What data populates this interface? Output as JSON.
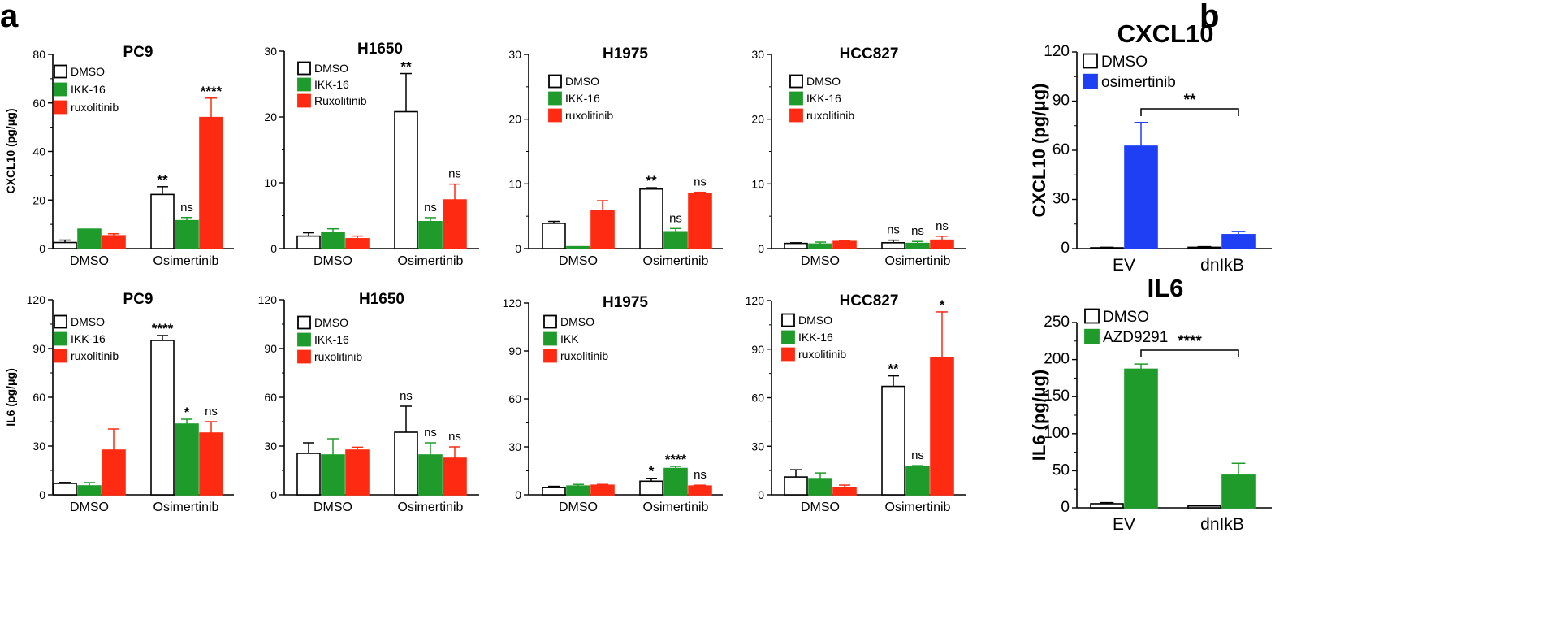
{
  "panel_labels": {
    "a": "a",
    "b": "b"
  },
  "colors": {
    "dmso": "#ffffff",
    "ikk": "#1e9b2a",
    "rux": "#ff2a12",
    "osi": "#1f3ff5",
    "azd": "#1e9b2a",
    "axis": "#000000"
  },
  "chart_data": [
    {
      "id": "pc9-cxcl10",
      "type": "bar",
      "title": "PC9",
      "ylabel": "CXCL10 (pg/μg)",
      "ylim": [
        0,
        80
      ],
      "yticks": [
        0,
        20,
        40,
        60,
        80
      ],
      "categories": [
        "DMSO",
        "Osimertinib"
      ],
      "legend": [
        "DMSO",
        "IKK-16",
        "ruxolitinib"
      ],
      "series": [
        {
          "name": "DMSO",
          "color": "dmso",
          "values": [
            2.5,
            22.3
          ],
          "err": [
            1.0,
            3.2
          ],
          "sig": [
            "",
            "**"
          ]
        },
        {
          "name": "IKK-16",
          "color": "ikk",
          "values": [
            8.0,
            11.5
          ],
          "err": [
            0,
            1.3
          ],
          "sig": [
            "",
            "ns"
          ]
        },
        {
          "name": "ruxolitinib",
          "color": "rux",
          "values": [
            5.3,
            54.0
          ],
          "err": [
            0.8,
            8.0
          ],
          "sig": [
            "",
            "****"
          ]
        }
      ]
    },
    {
      "id": "h1650-cxcl10",
      "type": "bar",
      "title": "H1650",
      "ylabel": "",
      "ylim": [
        0,
        30
      ],
      "yticks": [
        0,
        10,
        20,
        30
      ],
      "categories": [
        "DMSO",
        "Osimertinib"
      ],
      "legend": [
        "DMSO",
        "IKK-16",
        "Ruxolitinib"
      ],
      "series": [
        {
          "name": "DMSO",
          "color": "dmso",
          "values": [
            1.9,
            20.8
          ],
          "err": [
            0.5,
            5.8
          ],
          "sig": [
            "",
            "**"
          ]
        },
        {
          "name": "IKK-16",
          "color": "ikk",
          "values": [
            2.4,
            4.1
          ],
          "err": [
            0.6,
            0.6
          ],
          "sig": [
            "",
            "ns"
          ]
        },
        {
          "name": "Ruxolitinib",
          "color": "rux",
          "values": [
            1.5,
            7.4
          ],
          "err": [
            0.4,
            2.4
          ],
          "sig": [
            "",
            "ns"
          ]
        }
      ]
    },
    {
      "id": "h1975-cxcl10",
      "type": "bar",
      "title": "H1975",
      "ylabel": "",
      "ylim": [
        0,
        30
      ],
      "yticks": [
        0,
        10,
        20,
        30
      ],
      "categories": [
        "DMSO",
        "Osimertinib"
      ],
      "legend": [
        "DMSO",
        "IKK-16",
        "ruxolitinib"
      ],
      "series": [
        {
          "name": "DMSO",
          "color": "dmso",
          "values": [
            3.9,
            9.2
          ],
          "err": [
            0.3,
            0.2
          ],
          "sig": [
            "",
            "**"
          ]
        },
        {
          "name": "IKK-16",
          "color": "ikk",
          "values": [
            0.3,
            2.6
          ],
          "err": [
            0,
            0.5
          ],
          "sig": [
            "",
            "ns"
          ]
        },
        {
          "name": "ruxolitinib",
          "color": "rux",
          "values": [
            5.8,
            8.5
          ],
          "err": [
            1.6,
            0.2
          ],
          "sig": [
            "",
            "ns"
          ]
        }
      ]
    },
    {
      "id": "hcc827-cxcl10",
      "type": "bar",
      "title": "HCC827",
      "ylabel": "",
      "ylim": [
        0,
        30
      ],
      "yticks": [
        0,
        10,
        20,
        30
      ],
      "categories": [
        "DMSO",
        "Osimertinib"
      ],
      "legend": [
        "DMSO",
        "IKK-16",
        "ruxolitinib"
      ],
      "series": [
        {
          "name": "DMSO",
          "color": "dmso",
          "values": [
            0.8,
            0.9
          ],
          "err": [
            0.1,
            0.4
          ],
          "sig": [
            "",
            "ns"
          ]
        },
        {
          "name": "IKK-16",
          "color": "ikk",
          "values": [
            0.7,
            0.8
          ],
          "err": [
            0.3,
            0.3
          ],
          "sig": [
            "",
            "ns"
          ]
        },
        {
          "name": "ruxolitinib",
          "color": "rux",
          "values": [
            1.1,
            1.3
          ],
          "err": [
            0.1,
            0.6
          ],
          "sig": [
            "",
            "ns"
          ]
        }
      ]
    },
    {
      "id": "pc9-il6",
      "type": "bar",
      "title": "PC9",
      "ylabel": "IL6 (pg/μg)",
      "ylim": [
        0,
        120
      ],
      "yticks": [
        0,
        30,
        60,
        90,
        120
      ],
      "categories": [
        "DMSO",
        "Osimertinib"
      ],
      "legend": [
        "DMSO",
        "IKK-16",
        "ruxolitinib"
      ],
      "series": [
        {
          "name": "DMSO",
          "color": "dmso",
          "values": [
            7.0,
            95.0
          ],
          "err": [
            0.6,
            3.0
          ],
          "sig": [
            "",
            "****"
          ]
        },
        {
          "name": "IKK-16",
          "color": "ikk",
          "values": [
            5.5,
            43.5
          ],
          "err": [
            2.0,
            3.0
          ],
          "sig": [
            "",
            "*"
          ]
        },
        {
          "name": "ruxolitinib",
          "color": "rux",
          "values": [
            27.5,
            38.0
          ],
          "err": [
            13.0,
            7.0
          ],
          "sig": [
            "",
            "ns"
          ]
        }
      ]
    },
    {
      "id": "h1650-il6",
      "type": "bar",
      "title": "H1650",
      "ylabel": "",
      "ylim": [
        0,
        120
      ],
      "yticks": [
        0,
        30,
        60,
        90,
        120
      ],
      "categories": [
        "DMSO",
        "Osimertinib"
      ],
      "legend": [
        "DMSO",
        "IKK-16",
        "ruxolitinib"
      ],
      "series": [
        {
          "name": "DMSO",
          "color": "dmso",
          "values": [
            25.5,
            38.5
          ],
          "err": [
            6.5,
            16.0
          ],
          "sig": [
            "",
            "ns"
          ]
        },
        {
          "name": "IKK-16",
          "color": "ikk",
          "values": [
            24.5,
            24.5
          ],
          "err": [
            10.0,
            7.5
          ],
          "sig": [
            "",
            "ns"
          ]
        },
        {
          "name": "ruxolitinib",
          "color": "rux",
          "values": [
            27.5,
            22.5
          ],
          "err": [
            1.8,
            7.0
          ],
          "sig": [
            "",
            "ns"
          ]
        }
      ]
    },
    {
      "id": "h1975-il6",
      "type": "bar",
      "title": "H1975",
      "ylabel": "",
      "ylim": [
        0,
        120
      ],
      "yticks": [
        0,
        30,
        60,
        90,
        120
      ],
      "categories": [
        "DMSO",
        "Osimertinib"
      ],
      "legend": [
        "DMSO",
        "IKK",
        "ruxolitinib"
      ],
      "series": [
        {
          "name": "DMSO",
          "color": "dmso",
          "values": [
            4.5,
            8.5
          ],
          "err": [
            0.8,
            1.8
          ],
          "sig": [
            "",
            "*"
          ]
        },
        {
          "name": "IKK",
          "color": "ikk",
          "values": [
            5.5,
            16.5
          ],
          "err": [
            1.0,
            1.3
          ],
          "sig": [
            "",
            "****"
          ]
        },
        {
          "name": "ruxolitinib",
          "color": "rux",
          "values": [
            6.0,
            5.5
          ],
          "err": [
            0.5,
            0.5
          ],
          "sig": [
            "",
            "ns"
          ]
        }
      ]
    },
    {
      "id": "hcc827-il6",
      "type": "bar",
      "title": "HCC827",
      "ylabel": "",
      "ylim": [
        0,
        120
      ],
      "yticks": [
        0,
        30,
        60,
        90,
        120
      ],
      "categories": [
        "DMSO",
        "Osimertinib"
      ],
      "legend": [
        "DMSO",
        "IKK-16",
        "ruxolitinib"
      ],
      "series": [
        {
          "name": "DMSO",
          "color": "dmso",
          "values": [
            11.0,
            67.0
          ],
          "err": [
            4.5,
            6.5
          ],
          "sig": [
            "",
            "**"
          ]
        },
        {
          "name": "IKK-16",
          "color": "ikk",
          "values": [
            10.0,
            17.5
          ],
          "err": [
            3.5,
            0.5
          ],
          "sig": [
            "",
            "ns"
          ]
        },
        {
          "name": "ruxolitinib",
          "color": "rux",
          "values": [
            4.5,
            84.5
          ],
          "err": [
            1.5,
            28.5
          ],
          "sig": [
            "",
            "*"
          ]
        }
      ]
    },
    {
      "id": "b-cxcl10",
      "type": "bar",
      "title": "CXCL10",
      "ylabel": "CXCL10 (pg/μg)",
      "ylim": [
        0,
        120
      ],
      "yticks": [
        0,
        30,
        60,
        90,
        120
      ],
      "categories": [
        "EV",
        "dnIkB"
      ],
      "legend": [
        "DMSO",
        "osimertinib"
      ],
      "series": [
        {
          "name": "DMSO",
          "color": "dmso",
          "values": [
            0.5,
            0.8
          ],
          "err": [
            0.3,
            0.4
          ],
          "sig": [
            "",
            ""
          ]
        },
        {
          "name": "osimertinib",
          "color": "osi",
          "values": [
            62.5,
            8.5
          ],
          "err": [
            14.5,
            2.0
          ],
          "sig": [
            "",
            ""
          ]
        }
      ],
      "bracket": {
        "label": "**"
      }
    },
    {
      "id": "b-il6",
      "type": "bar",
      "title": "IL6",
      "ylabel": "IL6 (pg/μg)",
      "ylim": [
        0,
        250
      ],
      "yticks": [
        0,
        50,
        100,
        150,
        200,
        250
      ],
      "categories": [
        "EV",
        "dnIkB"
      ],
      "legend": [
        "DMSO",
        "AZD9291"
      ],
      "series": [
        {
          "name": "DMSO",
          "color": "dmso",
          "values": [
            5.5,
            2.5
          ],
          "err": [
            1.5,
            0.8
          ],
          "sig": [
            "",
            ""
          ]
        },
        {
          "name": "AZD9291",
          "color": "azd",
          "values": [
            187.0,
            44.0
          ],
          "err": [
            7.0,
            16.0
          ],
          "sig": [
            "",
            ""
          ]
        }
      ],
      "bracket": {
        "label": "****"
      }
    }
  ]
}
